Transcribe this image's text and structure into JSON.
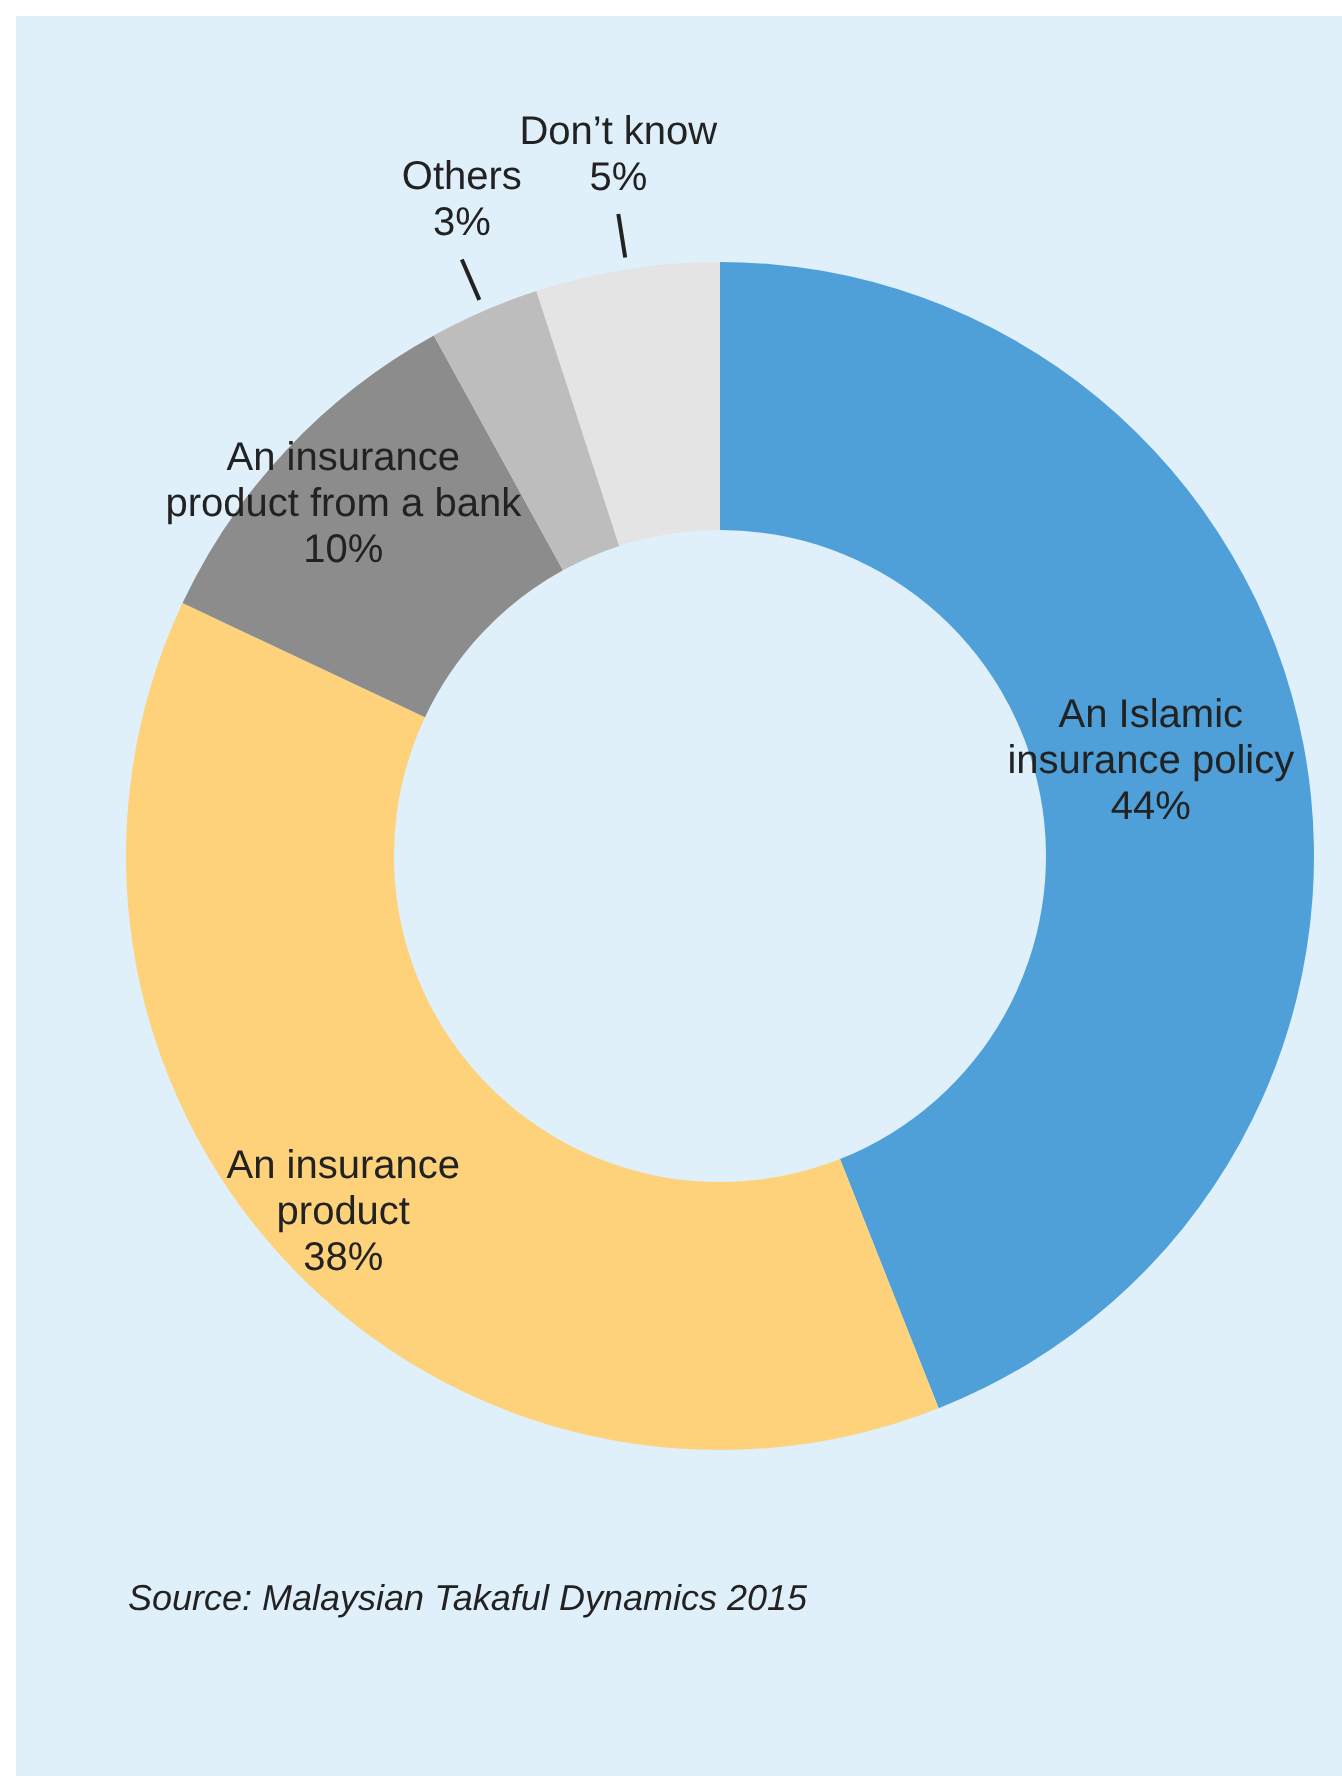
{
  "chart_data": {
    "type": "donut",
    "categories": [
      "An Islamic insurance policy",
      "An insurance product",
      "An insurance product from a bank",
      "Others",
      "Don’t know"
    ],
    "values": [
      44,
      38,
      10,
      3,
      5
    ],
    "colors": [
      "#4f9fd8",
      "#fdd27a",
      "#8c8c8c",
      "#bdbdbd",
      "#e4e4e4"
    ],
    "value_labels": [
      "44%",
      "38%",
      "10%",
      "3%",
      "5%"
    ],
    "annotations": [
      "Source: Malaysian Takaful Dynamics 2015"
    ]
  }
}
